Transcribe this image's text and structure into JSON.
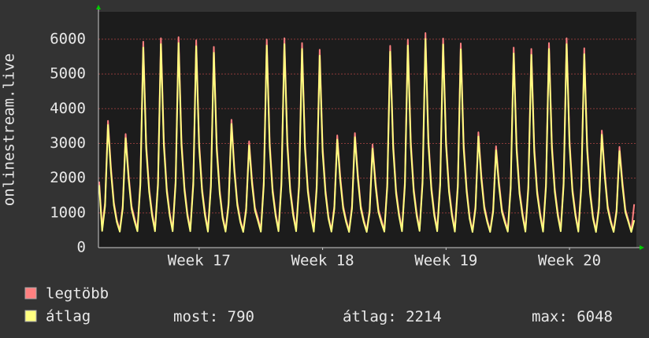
{
  "chart_data": {
    "type": "line",
    "y_label": "onlinestream.live",
    "x": [
      1,
      5,
      9,
      13,
      17,
      21,
      25,
      29,
      33,
      37,
      41,
      45,
      49,
      53,
      57,
      61,
      65,
      69,
      73,
      77,
      81,
      85,
      89,
      93,
      97,
      101,
      105,
      109,
      113,
      117,
      121,
      125,
      129,
      133,
      137,
      141,
      145,
      149,
      153,
      157,
      161,
      165,
      169,
      173,
      177,
      181,
      185,
      189,
      193,
      197,
      201,
      205,
      209,
      213,
      217,
      221,
      225,
      229,
      233,
      237,
      241,
      245,
      249,
      253,
      257,
      261,
      265,
      269,
      273,
      277,
      281,
      285,
      289,
      293,
      297,
      301,
      305,
      309,
      313,
      317,
      321,
      325,
      329,
      333,
      337,
      341,
      345,
      349,
      353,
      357,
      361,
      365,
      369,
      373,
      377,
      381,
      385,
      389,
      393,
      397,
      401,
      405,
      409,
      413,
      417,
      421,
      425,
      429,
      433,
      437,
      441,
      445,
      449,
      453,
      457,
      461,
      465,
      469,
      473,
      477,
      481,
      485,
      489,
      493,
      497,
      501,
      505,
      509,
      513,
      517,
      521,
      525,
      529,
      533,
      537,
      541,
      545,
      549,
      553,
      557,
      561,
      565,
      569,
      573,
      577,
      581,
      585,
      589,
      593,
      597,
      601,
      605,
      609,
      613,
      617,
      621,
      625,
      629,
      633,
      637,
      641,
      645,
      649,
      653,
      657,
      661,
      665,
      669,
      673,
      677,
      681,
      685,
      689,
      693,
      697,
      701,
      705,
      709,
      713,
      717,
      721,
      725,
      729
    ],
    "series": [
      {
        "name": "legtöbb",
        "color": "#ff8080",
        "values": [
          1900,
          560,
          1300,
          3650,
          2300,
          1300,
          800,
          510,
          1200,
          3270,
          2100,
          1200,
          850,
          520,
          1900,
          5930,
          3000,
          1700,
          1000,
          530,
          1900,
          6030,
          3100,
          1700,
          1000,
          520,
          1950,
          6060,
          3100,
          1750,
          1000,
          520,
          1900,
          5970,
          3050,
          1700,
          1000,
          510,
          1850,
          5780,
          2950,
          1650,
          900,
          500,
          1300,
          3680,
          2300,
          1300,
          800,
          490,
          1150,
          3060,
          1950,
          1150,
          850,
          510,
          1900,
          5990,
          3050,
          1700,
          1000,
          520,
          1900,
          6030,
          3100,
          1700,
          1000,
          520,
          1850,
          5890,
          3000,
          1700,
          1000,
          510,
          1800,
          5700,
          2900,
          1650,
          900,
          500,
          1200,
          3230,
          2050,
          1200,
          800,
          490,
          1200,
          3300,
          2100,
          1200,
          800,
          480,
          1100,
          2970,
          1900,
          1100,
          800,
          500,
          1850,
          5810,
          3000,
          1650,
          1000,
          520,
          1900,
          5990,
          3050,
          1700,
          1000,
          530,
          1950,
          6180,
          3150,
          1750,
          1000,
          520,
          1900,
          6020,
          3100,
          1700,
          1000,
          510,
          1850,
          5880,
          3000,
          1700,
          900,
          490,
          1200,
          3320,
          2100,
          1200,
          800,
          480,
          1100,
          2920,
          1900,
          1100,
          800,
          500,
          1800,
          5760,
          2950,
          1650,
          1000,
          510,
          1800,
          5720,
          2900,
          1650,
          1000,
          510,
          1850,
          5890,
          3000,
          1700,
          1000,
          520,
          1900,
          6030,
          3100,
          1700,
          1000,
          510,
          1800,
          5740,
          2950,
          1650,
          900,
          490,
          1200,
          3370,
          2150,
          1200,
          800,
          480,
          1100,
          2900,
          1900,
          1100,
          800,
          470,
          1250
        ]
      },
      {
        "name": "átlag",
        "color": "#ffff80",
        "values": [
          1800,
          480,
          1200,
          3530,
          2180,
          1220,
          740,
          460,
          1120,
          3150,
          1980,
          1120,
          770,
          470,
          1800,
          5760,
          2850,
          1600,
          920,
          470,
          1800,
          5860,
          2950,
          1600,
          920,
          470,
          1850,
          5890,
          2950,
          1650,
          920,
          470,
          1800,
          5800,
          2900,
          1600,
          920,
          460,
          1750,
          5610,
          2800,
          1550,
          840,
          460,
          1220,
          3560,
          2180,
          1220,
          740,
          450,
          1070,
          2940,
          1830,
          1070,
          770,
          460,
          1800,
          5820,
          2900,
          1600,
          920,
          470,
          1800,
          5860,
          2950,
          1600,
          920,
          470,
          1750,
          5720,
          2850,
          1600,
          920,
          460,
          1700,
          5530,
          2750,
          1550,
          840,
          460,
          1120,
          3110,
          1930,
          1120,
          740,
          450,
          1120,
          3180,
          1980,
          1120,
          740,
          450,
          1020,
          2850,
          1780,
          1020,
          720,
          460,
          1750,
          5640,
          2850,
          1550,
          920,
          470,
          1800,
          5820,
          2900,
          1600,
          920,
          480,
          1850,
          6010,
          3000,
          1650,
          920,
          470,
          1800,
          5850,
          2950,
          1600,
          920,
          460,
          1750,
          5710,
          2850,
          1600,
          840,
          450,
          1120,
          3200,
          1980,
          1120,
          740,
          450,
          1020,
          2800,
          1780,
          1020,
          720,
          460,
          1700,
          5590,
          2800,
          1550,
          920,
          460,
          1700,
          5550,
          2750,
          1550,
          920,
          460,
          1750,
          5720,
          2850,
          1600,
          920,
          470,
          1800,
          5860,
          2950,
          1600,
          920,
          460,
          1700,
          5570,
          2800,
          1550,
          840,
          450,
          1120,
          3250,
          2030,
          1120,
          740,
          450,
          1020,
          2780,
          1780,
          1020,
          750,
          450,
          790
        ]
      }
    ],
    "xlim": [
      0,
      732
    ],
    "xticks": [
      {
        "value": 137,
        "label": "Week 17"
      },
      {
        "value": 305,
        "label": "Week 18"
      },
      {
        "value": 473,
        "label": "Week 19"
      },
      {
        "value": 641,
        "label": "Week 20"
      }
    ],
    "ylim": [
      0,
      6790
    ],
    "yticks": [
      0,
      1000,
      2000,
      3000,
      4000,
      5000,
      6000
    ],
    "grid": true,
    "stats": [
      {
        "label": "most:",
        "value": 790
      },
      {
        "label": "átlag:",
        "value": 2214
      },
      {
        "label": "max:",
        "value": 6048
      }
    ]
  }
}
